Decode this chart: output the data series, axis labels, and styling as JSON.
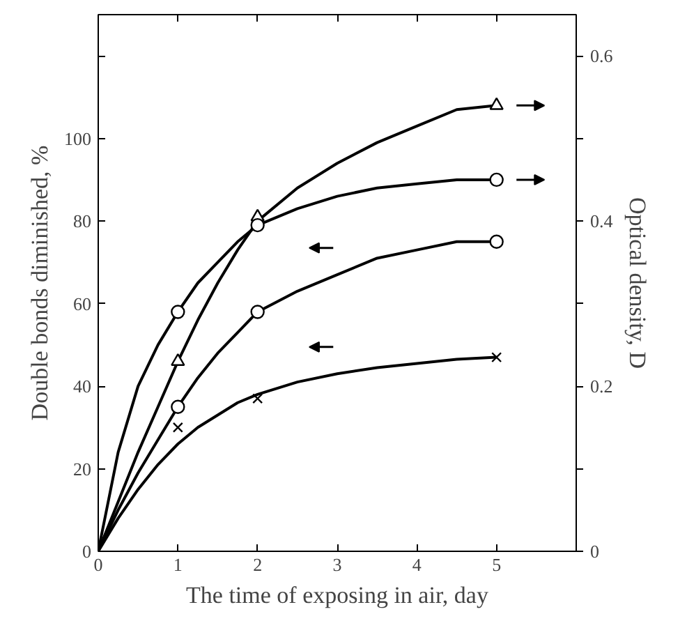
{
  "chart_data": {
    "type": "line",
    "xlabel": "The time of exposing in air, day",
    "ylabel": "Double bonds diminished, %",
    "y2label": "Optical density, D",
    "xlim": [
      0,
      6
    ],
    "xticks": [
      0,
      1,
      2,
      3,
      4,
      5
    ],
    "ylim": [
      0,
      130
    ],
    "yticks": [
      0,
      20,
      40,
      60,
      80,
      100,
      {
        "value": 120,
        "label": null
      }
    ],
    "y2lim": [
      0,
      0.65
    ],
    "y2ticks": [
      0,
      {
        "value": 0.1,
        "label": null
      },
      0.2,
      {
        "value": 0.3,
        "label": null
      },
      0.4,
      {
        "value": 0.5,
        "label": null
      },
      0.6
    ],
    "grid": false,
    "line_style": "solid",
    "series": [
      {
        "axis": "y2",
        "color": "#000000",
        "x": [
          0,
          0.25,
          0.5,
          0.75,
          1,
          1.25,
          1.5,
          1.75,
          2,
          2.5,
          3,
          3.5,
          4,
          4.5,
          5
        ],
        "values": [
          0,
          0.06,
          0.12,
          0.175,
          0.23,
          0.28,
          0.325,
          0.365,
          0.4,
          0.44,
          0.47,
          0.495,
          0.515,
          0.535,
          0.54
        ]
      },
      {
        "axis": "y2",
        "color": "#000000",
        "x": [
          0,
          0.25,
          0.5,
          0.75,
          1,
          1.25,
          1.5,
          1.75,
          2,
          2.5,
          3,
          3.5,
          4,
          4.5,
          5
        ],
        "values": [
          0,
          0.12,
          0.2,
          0.25,
          0.29,
          0.325,
          0.35,
          0.375,
          0.395,
          0.415,
          0.43,
          0.44,
          0.445,
          0.45,
          0.45
        ]
      },
      {
        "axis": "y",
        "color": "#000000",
        "x": [
          0,
          0.25,
          0.5,
          0.75,
          1,
          1.25,
          1.5,
          1.75,
          2,
          2.5,
          3,
          3.5,
          4,
          4.5,
          5
        ],
        "values": [
          0,
          10,
          19,
          27,
          35,
          42,
          48,
          53,
          58,
          63,
          67,
          71,
          73,
          75,
          75
        ]
      },
      {
        "axis": "y",
        "color": "#000000",
        "x": [
          0,
          0.25,
          0.5,
          0.75,
          1,
          1.25,
          1.5,
          1.75,
          2,
          2.5,
          3,
          3.5,
          4,
          4.5,
          5
        ],
        "values": [
          0,
          8,
          15,
          21,
          26,
          30,
          33,
          36,
          38,
          41,
          43,
          44.5,
          45.5,
          46.5,
          47
        ]
      },
      {
        "type": "scatter",
        "axis": "y2",
        "color": "#000000",
        "marker": "triangle",
        "x": [
          1,
          2,
          5
        ],
        "values": [
          0.23,
          0.405,
          0.54
        ]
      },
      {
        "type": "scatter",
        "axis": "y2",
        "color": "#000000",
        "marker": "circle",
        "x": [
          1,
          2,
          5
        ],
        "values": [
          0.29,
          0.395,
          0.45
        ]
      },
      {
        "type": "scatter",
        "axis": "y",
        "color": "#000000",
        "marker": "circle",
        "x": [
          1,
          2,
          5
        ],
        "values": [
          35,
          58,
          75
        ]
      },
      {
        "type": "scatter",
        "axis": "y",
        "color": "#000000",
        "marker": "cross",
        "x": [
          1,
          2,
          5
        ],
        "values": [
          30,
          37,
          47
        ]
      }
    ]
  }
}
